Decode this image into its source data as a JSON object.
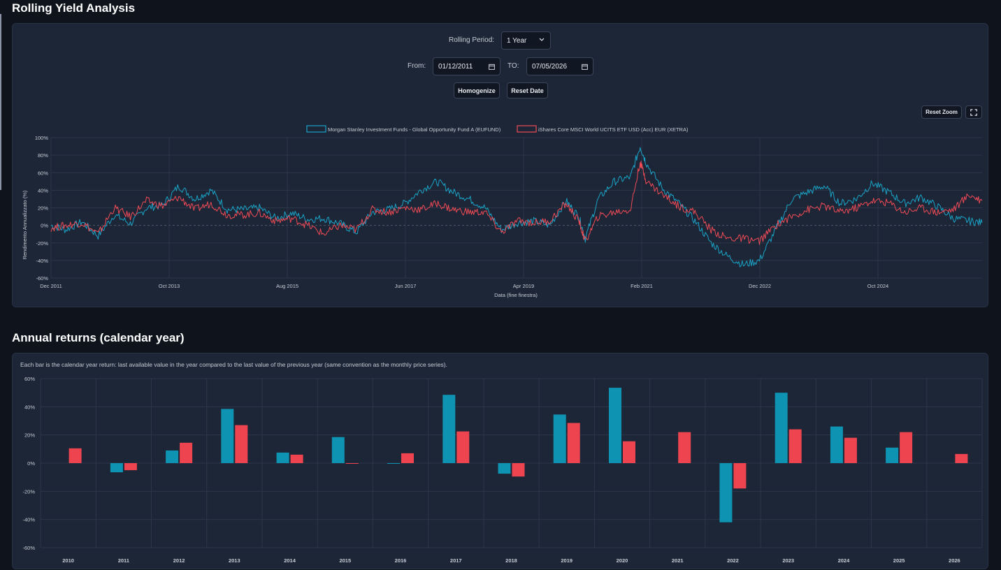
{
  "rolling": {
    "title": "Rolling Yield Analysis",
    "period_label": "Rolling Period:",
    "period_value": "1 Year",
    "from_label": "From:",
    "from_value": "01/12/2011",
    "to_label": "TO:",
    "to_value": "07/05/2026",
    "homogenize_label": "Homogenize",
    "reset_date_label": "Reset Date",
    "reset_zoom_label": "Reset Zoom",
    "fullscreen_icon": "fullscreen-icon"
  },
  "annual": {
    "title": "Annual returns (calendar year)",
    "note": "Each bar is the calendar year return: last available value in the year compared to the last value of the previous year (same convention as the monthly price series)."
  },
  "colors": {
    "fund": "#1aa3c7",
    "etf": "#ef4a56",
    "bar_fund": "#0e93b2",
    "bar_etf": "#ee4450"
  },
  "chart_data": [
    {
      "type": "line",
      "title": "",
      "xlabel": "Data (fine finestra)",
      "ylabel": "Rendimento Annualizzato (%)",
      "ylim": [
        -60,
        100
      ],
      "yticks": [
        "100%",
        "80%",
        "60%",
        "40%",
        "20%",
        "0%",
        "-20%",
        "-40%",
        "-60%"
      ],
      "xticks": [
        "Dec 2011",
        "Oct 2013",
        "Aug 2015",
        "Jun 2017",
        "Apr 2019",
        "Feb 2021",
        "Dec 2022",
        "Oct 2024"
      ],
      "legend_position": "top-center",
      "x": [
        2011.92,
        2012.15,
        2012.4,
        2012.65,
        2012.9,
        2013.15,
        2013.4,
        2013.65,
        2013.9,
        2014.15,
        2014.4,
        2014.65,
        2014.9,
        2015.15,
        2015.4,
        2015.65,
        2015.9,
        2016.15,
        2016.4,
        2016.65,
        2016.9,
        2017.15,
        2017.4,
        2017.65,
        2017.9,
        2018.15,
        2018.4,
        2018.65,
        2018.9,
        2019.15,
        2019.4,
        2019.65,
        2019.9,
        2020.1,
        2020.2,
        2020.4,
        2020.65,
        2020.9,
        2021.05,
        2021.15,
        2021.4,
        2021.65,
        2021.9,
        2022.15,
        2022.4,
        2022.65,
        2022.9,
        2023.15,
        2023.4,
        2023.65,
        2023.9,
        2024.15,
        2024.4,
        2024.65,
        2024.9,
        2025.15,
        2025.4,
        2025.65,
        2025.9,
        2026.15,
        2026.35
      ],
      "series": [
        {
          "name": "Morgan Stanley Investment Funds - Global Opportunity Fund A (EUFUND)",
          "values": [
            0,
            -5,
            4,
            -12,
            12,
            2,
            20,
            23,
            45,
            30,
            40,
            18,
            18,
            20,
            8,
            14,
            7,
            8,
            2,
            -8,
            15,
            18,
            25,
            40,
            50,
            38,
            30,
            20,
            -5,
            3,
            5,
            0,
            28,
            10,
            -15,
            30,
            50,
            55,
            90,
            70,
            42,
            25,
            5,
            -20,
            -35,
            -45,
            -40,
            -5,
            30,
            38,
            45,
            25,
            30,
            48,
            38,
            25,
            32,
            22,
            8,
            5,
            3
          ]
        },
        {
          "name": "iShares Core MSCI World UCITS ETF USD (Acc) EUR (XETRA)",
          "values": [
            -3,
            0,
            3,
            -10,
            20,
            10,
            28,
            22,
            32,
            18,
            25,
            12,
            12,
            14,
            5,
            8,
            0,
            -10,
            0,
            -5,
            18,
            15,
            20,
            18,
            25,
            18,
            15,
            15,
            -8,
            5,
            3,
            5,
            25,
            5,
            -18,
            10,
            15,
            18,
            72,
            50,
            35,
            22,
            15,
            -5,
            -15,
            -15,
            -18,
            0,
            10,
            18,
            22,
            15,
            20,
            28,
            26,
            15,
            20,
            15,
            18,
            35,
            28
          ]
        }
      ]
    },
    {
      "type": "bar",
      "title": "",
      "ylim": [
        -60,
        60
      ],
      "yticks": [
        "60%",
        "40%",
        "20%",
        "0%",
        "-20%",
        "-40%",
        "-60%"
      ],
      "categories": [
        "2010",
        "2011",
        "2012",
        "2013",
        "2014",
        "2015",
        "2016",
        "2017",
        "2018",
        "2019",
        "2020",
        "2021",
        "2022",
        "2023",
        "2024",
        "2025",
        "2026"
      ],
      "series": [
        {
          "name": "Morgan Stanley Investment Funds - Global Opportunity Fund A (EUFUND)",
          "values": [
            null,
            -6.5,
            9,
            38.5,
            7.5,
            18.5,
            -0.5,
            48.5,
            -7.5,
            34.5,
            53.5,
            null,
            -42,
            50,
            26,
            11,
            null
          ]
        },
        {
          "name": "iShares Core MSCI World UCITS ETF USD (Acc) EUR (XETRA)",
          "values": [
            10.5,
            -5,
            14.5,
            27,
            6,
            -0.5,
            7,
            22.5,
            -9.5,
            28.5,
            15.5,
            22,
            -18,
            24,
            18,
            22,
            6.5
          ]
        }
      ]
    }
  ]
}
